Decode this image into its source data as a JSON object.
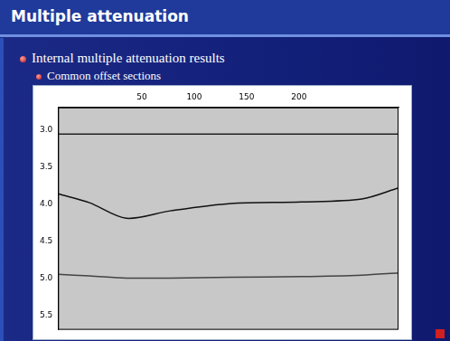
{
  "slide": {
    "title": "Multiple attenuation",
    "bullets": [
      "Internal multiple attenuation results",
      "Common offset sections"
    ]
  },
  "chart_data": {
    "type": "line",
    "x": [
      -30,
      0,
      35,
      77,
      135,
      202,
      260,
      295
    ],
    "series": [
      {
        "color": "#222222",
        "values": [
          3.05,
          3.05,
          3.05,
          3.05,
          3.05,
          3.05,
          3.05,
          3.05
        ]
      },
      {
        "color": "#111111",
        "values": [
          3.86,
          3.98,
          4.19,
          4.09,
          3.99,
          3.97,
          3.93,
          3.78
        ]
      },
      {
        "color": "#444444",
        "values": [
          4.95,
          4.97,
          5.0,
          5.0,
          4.99,
          4.98,
          4.96,
          4.93
        ]
      }
    ],
    "xlim": [
      -30,
      295
    ],
    "xticks": [
      50,
      100,
      150,
      200
    ],
    "ylim": [
      2.69,
      5.7
    ],
    "yticks": [
      {
        "value": 3,
        "label": "3.0"
      },
      {
        "value": 3.5,
        "label": "3.5"
      },
      {
        "value": 4,
        "label": "4.0"
      },
      {
        "value": 4.5,
        "label": "4.5"
      },
      {
        "value": 5,
        "label": "5.0"
      },
      {
        "value": 5.5,
        "label": "5.5"
      }
    ],
    "grid": false
  }
}
